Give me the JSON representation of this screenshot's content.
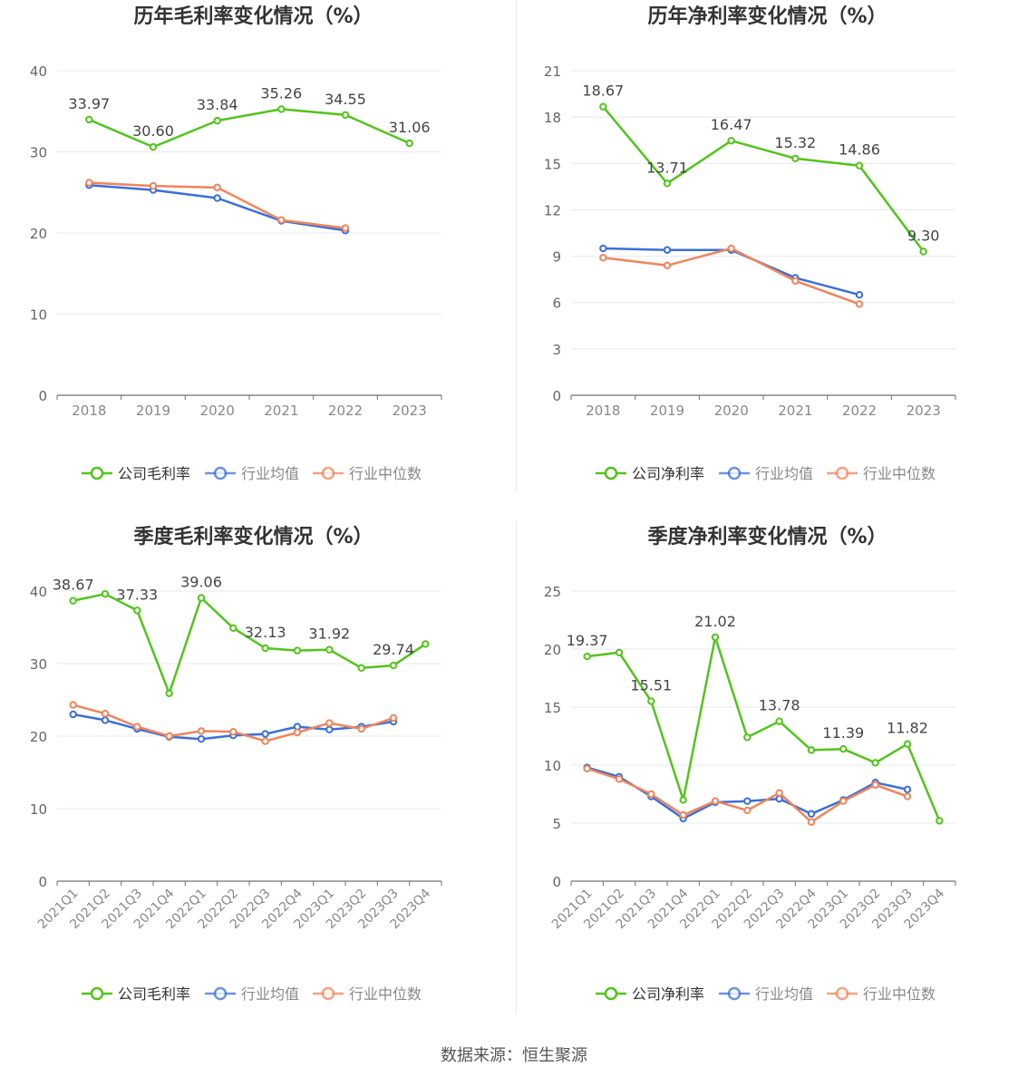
{
  "footer": "数据来源：恒生聚源",
  "legend_labels": {
    "gross": [
      "公司毛利率",
      "行业均值",
      "行业中位数"
    ],
    "net": [
      "公司净利率",
      "行业均值",
      "行业中位数"
    ]
  },
  "colors": {
    "company": "#52c41a",
    "avg": "#3b6fd6",
    "median": "#f0845a",
    "grid": "#e6e9f0",
    "axis": "#888888"
  },
  "chart_data": [
    {
      "type": "line",
      "title": "历年毛利率变化情况（%）",
      "categories": [
        "2018",
        "2019",
        "2020",
        "2021",
        "2022",
        "2023"
      ],
      "ylim": [
        0,
        40
      ],
      "yticks": [
        0,
        10,
        20,
        30,
        40
      ],
      "legend": "bottom",
      "series": [
        {
          "name": "公司毛利率",
          "values": [
            33.97,
            30.6,
            33.84,
            35.26,
            34.55,
            31.06
          ],
          "labels": [
            true,
            true,
            true,
            true,
            true,
            true
          ]
        },
        {
          "name": "行业均值",
          "values": [
            25.9,
            25.3,
            24.3,
            21.5,
            20.3,
            null
          ]
        },
        {
          "name": "行业中位数",
          "values": [
            26.2,
            25.8,
            25.6,
            21.6,
            20.6,
            null
          ]
        }
      ]
    },
    {
      "type": "line",
      "title": "历年净利率变化情况（%）",
      "categories": [
        "2018",
        "2019",
        "2020",
        "2021",
        "2022",
        "2023"
      ],
      "ylim": [
        0,
        21
      ],
      "yticks": [
        0,
        3,
        6,
        9,
        12,
        15,
        18,
        21
      ],
      "legend": "bottom",
      "series": [
        {
          "name": "公司净利率",
          "values": [
            18.67,
            13.71,
            16.47,
            15.32,
            14.86,
            9.3
          ],
          "labels": [
            true,
            true,
            true,
            true,
            true,
            true
          ]
        },
        {
          "name": "行业均值",
          "values": [
            9.5,
            9.4,
            9.4,
            7.6,
            6.5,
            null
          ]
        },
        {
          "name": "行业中位数",
          "values": [
            8.9,
            8.4,
            9.5,
            7.4,
            5.9,
            null
          ]
        }
      ]
    },
    {
      "type": "line",
      "title": "季度毛利率变化情况（%）",
      "categories": [
        "2021Q1",
        "2021Q2",
        "2021Q3",
        "2021Q4",
        "2022Q1",
        "2022Q2",
        "2022Q3",
        "2022Q4",
        "2023Q1",
        "2023Q2",
        "2023Q3",
        "2023Q4"
      ],
      "ylim": [
        0,
        40
      ],
      "yticks": [
        0,
        10,
        20,
        30,
        40
      ],
      "legend": "bottom",
      "series": [
        {
          "name": "公司毛利率",
          "values": [
            38.67,
            39.6,
            37.33,
            25.9,
            39.06,
            34.9,
            32.13,
            31.8,
            31.92,
            29.4,
            29.74,
            32.7
          ],
          "labels": [
            true,
            false,
            true,
            false,
            true,
            false,
            true,
            false,
            true,
            false,
            true,
            false
          ]
        },
        {
          "name": "行业均值",
          "values": [
            23.0,
            22.2,
            21.0,
            19.9,
            19.6,
            20.1,
            20.3,
            21.3,
            20.9,
            21.3,
            22.0,
            null
          ]
        },
        {
          "name": "行业中位数",
          "values": [
            24.3,
            23.1,
            21.3,
            20.0,
            20.7,
            20.6,
            19.3,
            20.5,
            21.8,
            21.0,
            22.5,
            null
          ]
        }
      ]
    },
    {
      "type": "line",
      "title": "季度净利率变化情况（%）",
      "categories": [
        "2021Q1",
        "2021Q2",
        "2021Q3",
        "2021Q4",
        "2022Q1",
        "2022Q2",
        "2022Q3",
        "2022Q4",
        "2023Q1",
        "2023Q2",
        "2023Q3",
        "2023Q4"
      ],
      "ylim": [
        0,
        25
      ],
      "yticks": [
        0,
        5,
        10,
        15,
        20,
        25
      ],
      "legend": "bottom",
      "series": [
        {
          "name": "公司净利率",
          "values": [
            19.37,
            19.7,
            15.51,
            7.0,
            21.02,
            12.4,
            13.78,
            11.3,
            11.39,
            10.2,
            11.82,
            5.2
          ],
          "labels": [
            true,
            false,
            true,
            false,
            true,
            false,
            true,
            false,
            true,
            false,
            true,
            false
          ]
        },
        {
          "name": "行业均值",
          "values": [
            9.8,
            9.0,
            7.3,
            5.4,
            6.8,
            6.9,
            7.1,
            5.8,
            7.0,
            8.5,
            7.9,
            null
          ]
        },
        {
          "name": "行业中位数",
          "values": [
            9.7,
            8.8,
            7.5,
            5.7,
            6.9,
            6.1,
            7.6,
            5.1,
            6.9,
            8.3,
            7.3,
            null
          ]
        }
      ]
    }
  ]
}
